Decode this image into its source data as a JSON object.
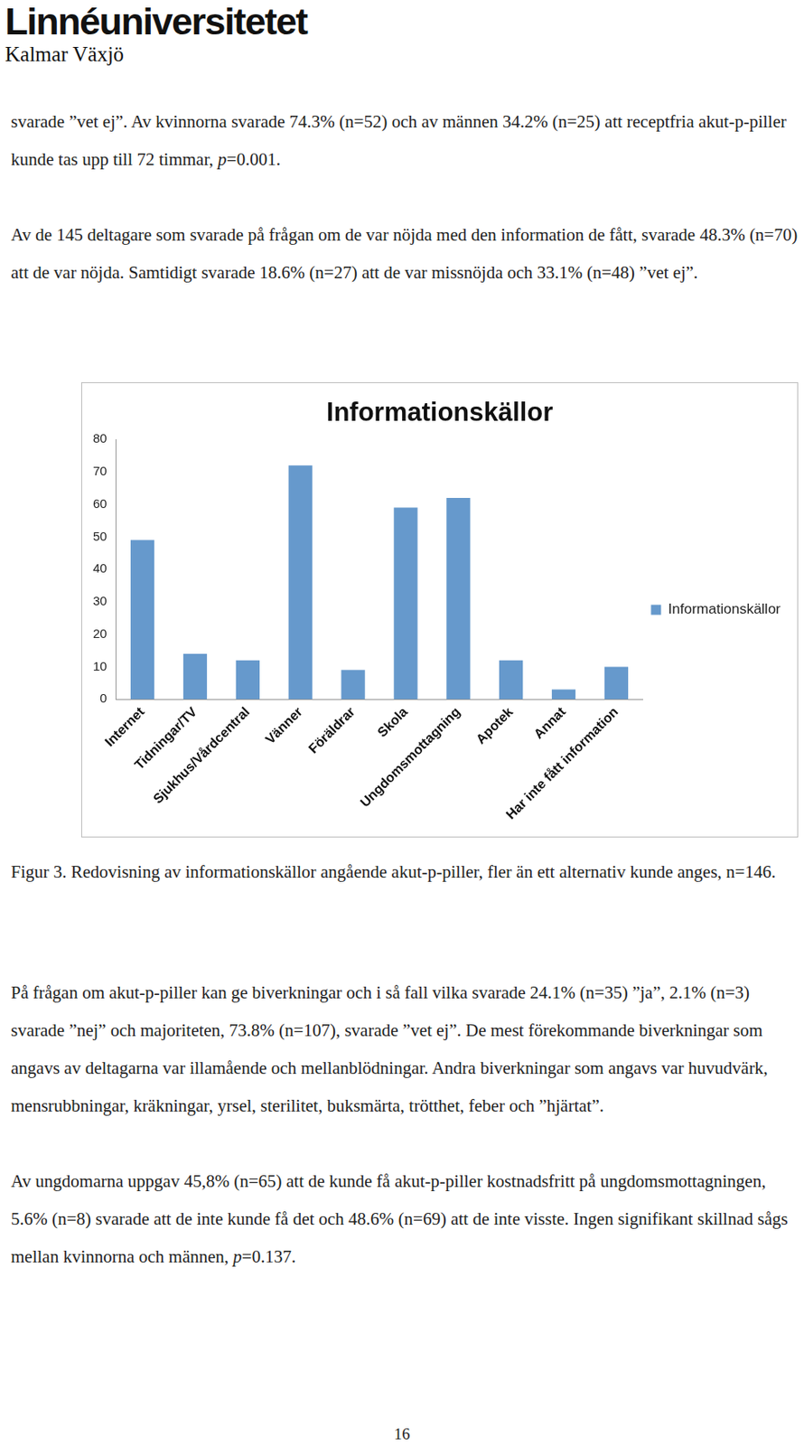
{
  "header": {
    "title": "Linnéuniversitetet",
    "subtitle": "Kalmar Växjö"
  },
  "paragraphs_before": [
    [
      {
        "text": "svarade ”vet ej”. Av kvinnorna svarade 74.3% (n=52) och av männen 34.2% (n=25) att receptfria akut-p-piller kunde tas upp till 72 timmar, "
      },
      {
        "text": "p",
        "italic": true
      },
      {
        "text": "=0.001."
      }
    ],
    [
      {
        "text": "Av de 145 deltagare som svarade på frågan om de var nöjda med den information de fått, svarade 48.3% (n=70) att de var nöjda. Samtidigt svarade 18.6% (n=27) att de var missnöjda och 33.1% (n=48) ”vet ej”."
      }
    ]
  ],
  "chart_data": {
    "type": "bar",
    "title": "Informationskällor",
    "categories": [
      "Internet",
      "Tidningar/TV",
      "Sjukhus/Vårdcentral",
      "Vänner",
      "Föräldrar",
      "Skola",
      "Ungdomsmottagning",
      "Apotek",
      "Annat",
      "Har inte fått information"
    ],
    "series": [
      {
        "name": "Informationskällor",
        "color": "#6699cc",
        "values": [
          49,
          14,
          12,
          72,
          9,
          59,
          62,
          12,
          3,
          10
        ]
      }
    ],
    "ylim": [
      0,
      80
    ],
    "yticks": [
      0,
      10,
      20,
      30,
      40,
      50,
      60,
      70,
      80
    ],
    "grid": false,
    "legend": "right"
  },
  "caption": "Figur 3. Redovisning av informationskällor angående akut-p-piller, fler än ett alternativ kunde anges, n=146.",
  "paragraphs_after": [
    [
      {
        "text": "På frågan om akut-p-piller kan ge biverkningar och i så fall vilka svarade 24.1% (n=35) ”ja”, 2.1% (n=3) svarade ”nej” och majoriteten, 73.8% (n=107), svarade ”vet ej”. De mest förekommande biverkningar som angavs av deltagarna var illamående och mellanblödningar. Andra biverkningar som angavs var huvudvärk, mensrubbningar, kräkningar, yrsel, sterilitet, buksmärta, trötthet, feber och ”hjärtat”."
      }
    ],
    [
      {
        "text": "Av ungdomarna uppgav 45,8% (n=65) att de kunde få akut-p-piller kostnadsfritt på ungdomsmottagningen, 5.6% (n=8) svarade att de inte kunde få det och 48.6% (n=69) att de inte visste. Ingen signifikant skillnad sågs mellan kvinnorna och männen, "
      },
      {
        "text": "p",
        "italic": true
      },
      {
        "text": "=0.137."
      }
    ]
  ],
  "page_number": "16"
}
